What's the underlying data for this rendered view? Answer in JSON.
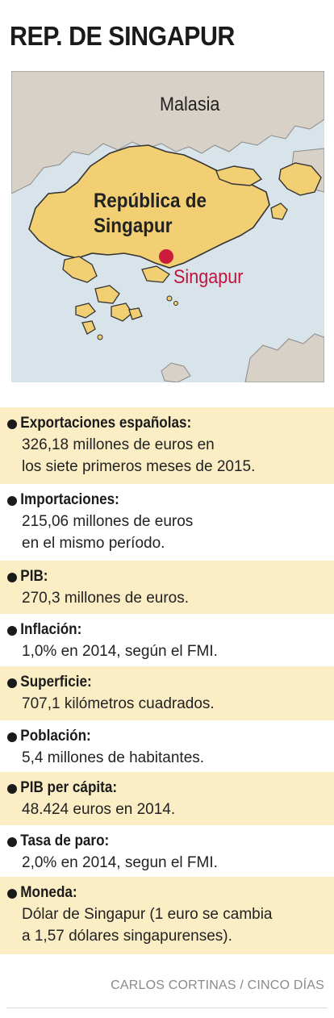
{
  "title": "REP. DE SINGAPUR",
  "map": {
    "labels": {
      "neighbor": "Malasia",
      "country_line1": "República de",
      "country_line2": "Singapur",
      "capital": "Singapur"
    },
    "colors": {
      "sea": "#d8e4ea",
      "land": "#d7d1c8",
      "singapore": "#f2cf73",
      "coast": "#333333",
      "capital_dot": "#cc1c3c"
    }
  },
  "facts": [
    {
      "label": "Exportaciones españolas:",
      "text": "326,18 millones de euros en\nlos siete primeros meses de 2015.",
      "shaded": true
    },
    {
      "label": "Importaciones:",
      "text": "215,06 millones de euros\nen el mismo período.",
      "shaded": false
    },
    {
      "label": "PIB:",
      "text": "270,3 millones de euros.",
      "shaded": true
    },
    {
      "label": "Inflación:",
      "text": "1,0% en 2014, según el FMI.",
      "shaded": false
    },
    {
      "label": "Superficie:",
      "text": "707,1 kilómetros cuadrados.",
      "shaded": true
    },
    {
      "label": "Población:",
      "text": "5,4 millones de habitantes.",
      "shaded": false
    },
    {
      "label": "PIB per cápita:",
      "text": "48.424 euros en 2014.",
      "shaded": true
    },
    {
      "label": "Tasa de paro:",
      "text": "2,0% en 2014, segun el FMI.",
      "shaded": false
    },
    {
      "label": "Moneda:",
      "text": "Dólar de Singapur (1 euro se cambia\na 1,57 dólares singapurenses).",
      "shaded": true
    }
  ],
  "credit": "CARLOS CORTINAS / CINCO DÍAS"
}
